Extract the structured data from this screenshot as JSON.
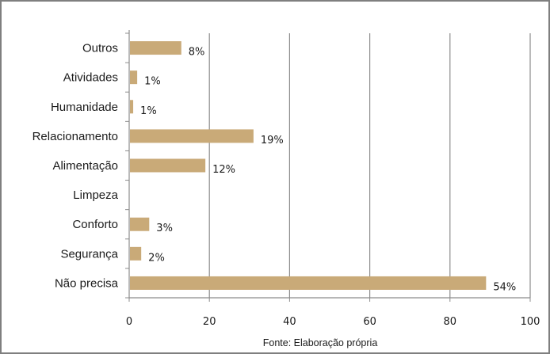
{
  "chart_data": {
    "type": "bar",
    "orientation": "horizontal",
    "categories": [
      "Outros",
      "Atividades",
      "Humanidade",
      "Relacionamento",
      "Alimentação",
      "Limpeza",
      "Conforto",
      "Segurança",
      "Não precisa"
    ],
    "values": [
      13,
      2,
      1,
      31,
      19,
      0,
      5,
      3,
      89
    ],
    "data_labels": [
      "8%",
      "1%",
      "1%",
      "19%",
      "12%",
      "",
      "3%",
      "2%",
      "54%"
    ],
    "xlim": [
      0,
      100
    ],
    "x_ticks": [
      "0",
      "20",
      "40",
      "60",
      "80",
      "100"
    ],
    "grid": "vertical gridlines",
    "bar_color": "#c9aa78",
    "title": "",
    "xlabel": "",
    "ylabel": ""
  },
  "source_note": "Fonte: Elaboração própria"
}
